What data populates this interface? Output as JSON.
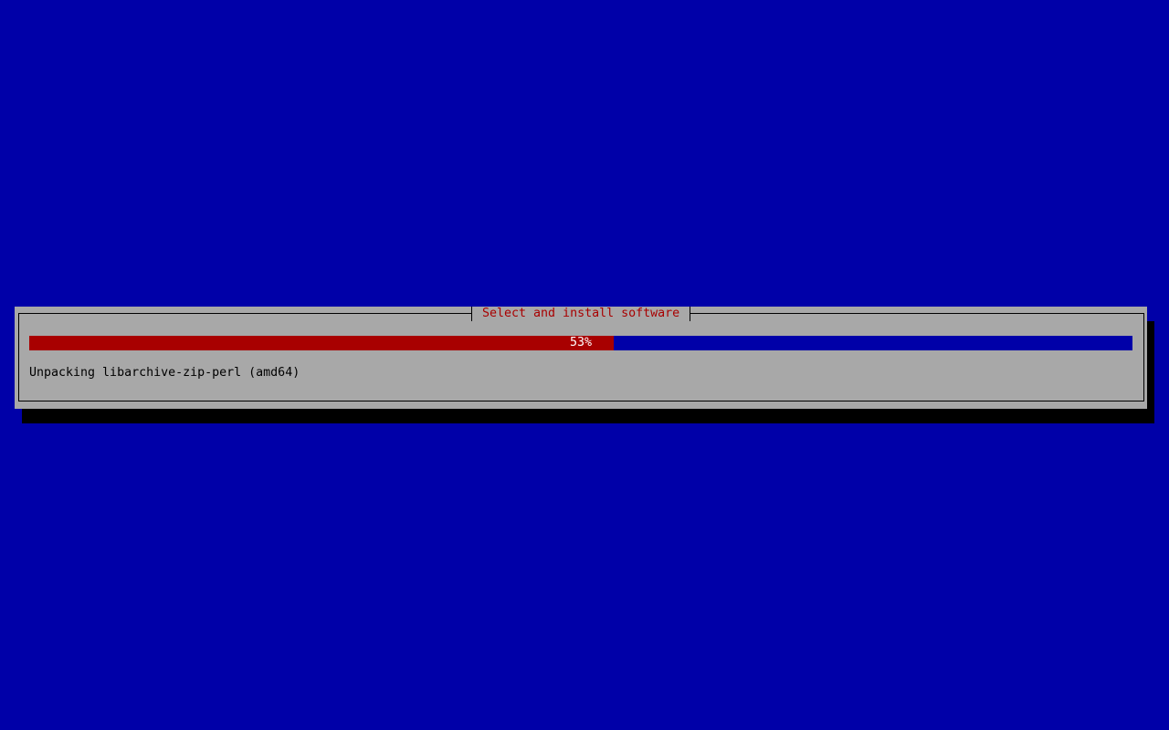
{
  "dialog": {
    "title": "Select and install software",
    "progress": {
      "percent": 53,
      "label": "53%"
    },
    "status": "Unpacking libarchive-zip-perl (amd64)"
  },
  "colors": {
    "background": "#0000a8",
    "dialog": "#a8a8a8",
    "title": "#a80000",
    "progress_fill": "#a80000",
    "progress_track": "#0000a8"
  }
}
